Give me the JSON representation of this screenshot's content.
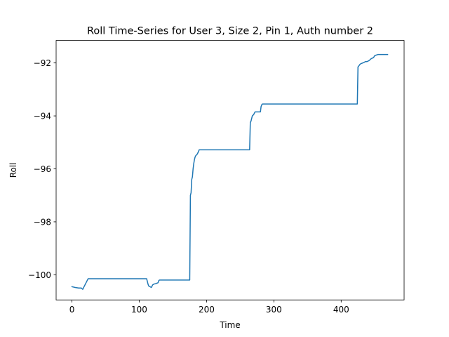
{
  "chart_data": {
    "type": "line",
    "title": "Roll Time-Series for User 3, Size 2, Pin 1, Auth number 2",
    "xlabel": "Time",
    "ylabel": "Roll",
    "xlim": [
      -23.5,
      493.5
    ],
    "ylim": [
      -100.95,
      -91.15
    ],
    "xticks": [
      0,
      100,
      200,
      300,
      400
    ],
    "yticks": [
      -100,
      -98,
      -96,
      -94,
      -92
    ],
    "xtick_labels": [
      "0",
      "100",
      "200",
      "300",
      "400"
    ],
    "ytick_labels": [
      "−100",
      "−98",
      "−96",
      "−94",
      "−92"
    ],
    "grid": false,
    "series": [
      {
        "color": "#1f77b4",
        "x": [
          0,
          5,
          10,
          14,
          16,
          18,
          20,
          22,
          24,
          30,
          50,
          80,
          100,
          111,
          112,
          113,
          114,
          116,
          118,
          120,
          122,
          125,
          128,
          129,
          130,
          140,
          160,
          175,
          176,
          176.5,
          177,
          178,
          179,
          180,
          181,
          182,
          183,
          184,
          186,
          188,
          189,
          190,
          200,
          230,
          264,
          265,
          266,
          267,
          268,
          270,
          272,
          274,
          276,
          278,
          280,
          281,
          282,
          283,
          285,
          290,
          300,
          350,
          400,
          424,
          425,
          426,
          428,
          430,
          432,
          434,
          436,
          438,
          440,
          442,
          444,
          446,
          448,
          450,
          455,
          460,
          469
        ],
        "y": [
          -100.45,
          -100.48,
          -100.5,
          -100.5,
          -100.55,
          -100.45,
          -100.35,
          -100.25,
          -100.15,
          -100.15,
          -100.15,
          -100.15,
          -100.15,
          -100.15,
          -100.25,
          -100.35,
          -100.42,
          -100.45,
          -100.48,
          -100.38,
          -100.35,
          -100.33,
          -100.3,
          -100.22,
          -100.2,
          -100.2,
          -100.2,
          -100.2,
          -97.0,
          -96.95,
          -96.9,
          -96.4,
          -96.3,
          -96.0,
          -95.8,
          -95.65,
          -95.55,
          -95.5,
          -95.45,
          -95.35,
          -95.28,
          -95.28,
          -95.28,
          -95.28,
          -95.28,
          -94.25,
          -94.2,
          -94.1,
          -94.0,
          -93.95,
          -93.85,
          -93.85,
          -93.85,
          -93.85,
          -93.85,
          -93.65,
          -93.58,
          -93.55,
          -93.55,
          -93.55,
          -93.55,
          -93.55,
          -93.55,
          -93.55,
          -92.15,
          -92.12,
          -92.05,
          -92.02,
          -92.0,
          -91.98,
          -91.95,
          -91.95,
          -91.93,
          -91.9,
          -91.85,
          -91.82,
          -91.8,
          -91.72,
          -91.68,
          -91.68,
          -91.68
        ]
      }
    ]
  }
}
